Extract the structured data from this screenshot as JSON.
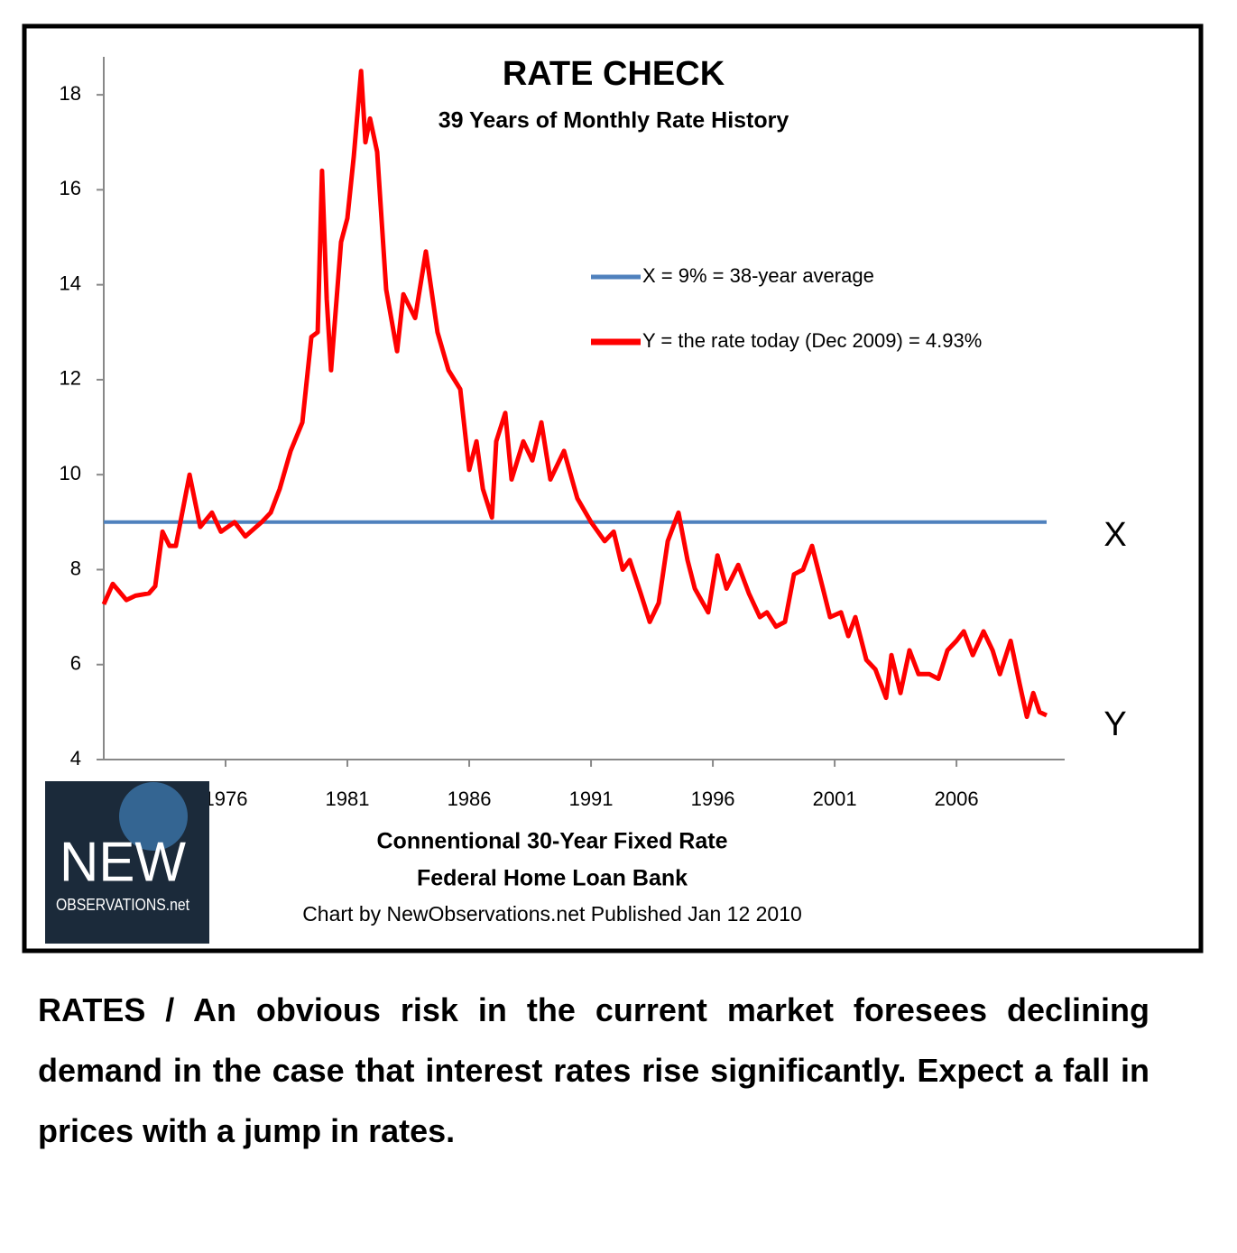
{
  "chart_data": {
    "type": "line",
    "title": "RATE CHECK",
    "subtitle": "39 Years of Monthly Rate History",
    "x_label_lines": [
      "Connentional 30-Year Fixed Rate",
      "Federal Home Loan Bank"
    ],
    "credit": "Chart by NewObservations.net  Published Jan 12 2010",
    "logo": {
      "title": "NEW",
      "subtitle": "OBSERVATIONS.net"
    },
    "xlim": [
      1971,
      2010.44
    ],
    "xticks": [
      1976,
      1981,
      1986,
      1991,
      1996,
      2001,
      2006
    ],
    "ylim": [
      4,
      18.8
    ],
    "yticks": [
      4,
      6,
      8,
      10,
      12,
      14,
      16,
      18
    ],
    "series": [
      {
        "name": "X = 9% = 38-year average",
        "color": "#4f81bd",
        "end_label": "X",
        "x": [
          1971.0,
          2009.7
        ],
        "values": [
          9,
          9
        ]
      },
      {
        "name": "Y = the rate today (Dec 2009) = 4.93%",
        "color": "#ff0000",
        "end_label": "Y",
        "x": [
          1971.0,
          1971.37,
          1971.93,
          1972.3,
          1972.85,
          1973.11,
          1973.41,
          1973.7,
          1973.96,
          1974.52,
          1974.96,
          1975.44,
          1975.81,
          1976.37,
          1976.81,
          1977.48,
          1977.85,
          1978.22,
          1978.67,
          1979.15,
          1979.52,
          1979.78,
          1979.96,
          1980.15,
          1980.33,
          1980.74,
          1981.0,
          1981.26,
          1981.56,
          1981.74,
          1981.93,
          1982.22,
          1982.59,
          1983.04,
          1983.3,
          1983.78,
          1984.22,
          1984.7,
          1985.15,
          1985.63,
          1986.0,
          1986.3,
          1986.56,
          1986.93,
          1987.11,
          1987.48,
          1987.74,
          1988.22,
          1988.59,
          1988.96,
          1989.33,
          1989.89,
          1990.44,
          1991.0,
          1991.56,
          1991.93,
          1992.3,
          1992.59,
          1993.04,
          1993.41,
          1993.78,
          1994.15,
          1994.59,
          1994.96,
          1995.26,
          1995.81,
          1996.19,
          1996.56,
          1997.04,
          1997.48,
          1997.93,
          1998.22,
          1998.59,
          1998.96,
          1999.33,
          1999.7,
          2000.07,
          2000.52,
          2000.81,
          2001.26,
          2001.56,
          2001.85,
          2002.3,
          2002.67,
          2003.11,
          2003.33,
          2003.7,
          2004.07,
          2004.44,
          2004.89,
          2005.26,
          2005.63,
          2006.0,
          2006.3,
          2006.67,
          2007.11,
          2007.48,
          2007.78,
          2008.22,
          2008.59,
          2008.89,
          2009.15,
          2009.41,
          2009.7
        ],
        "values": [
          7.27,
          7.7,
          7.36,
          7.45,
          7.5,
          7.65,
          8.8,
          8.5,
          8.5,
          10.0,
          8.9,
          9.2,
          8.8,
          9.0,
          8.7,
          9.0,
          9.2,
          9.7,
          10.5,
          11.1,
          12.9,
          13.0,
          16.4,
          13.7,
          12.2,
          14.9,
          15.4,
          16.7,
          18.5,
          17.0,
          17.5,
          16.8,
          13.9,
          12.6,
          13.8,
          13.3,
          14.7,
          13.0,
          12.2,
          11.8,
          10.1,
          10.7,
          9.7,
          9.1,
          10.7,
          11.3,
          9.9,
          10.7,
          10.3,
          11.1,
          9.9,
          10.5,
          9.5,
          9.0,
          8.6,
          8.8,
          8.0,
          8.2,
          7.5,
          6.9,
          7.3,
          8.6,
          9.2,
          8.2,
          7.6,
          7.1,
          8.3,
          7.6,
          8.1,
          7.5,
          7.0,
          7.1,
          6.8,
          6.9,
          7.9,
          8.0,
          8.5,
          7.6,
          7.0,
          7.1,
          6.6,
          7.0,
          6.1,
          5.9,
          5.3,
          6.2,
          5.4,
          6.3,
          5.8,
          5.8,
          5.7,
          6.3,
          6.5,
          6.7,
          6.2,
          6.7,
          6.3,
          5.8,
          6.5,
          5.6,
          4.9,
          5.4,
          5.0,
          4.93
        ]
      }
    ]
  },
  "caption": "RATES / An obvious risk in the current market foresees declining demand in the case that interest rates rise significantly. Expect a fall in prices with a jump in rates."
}
